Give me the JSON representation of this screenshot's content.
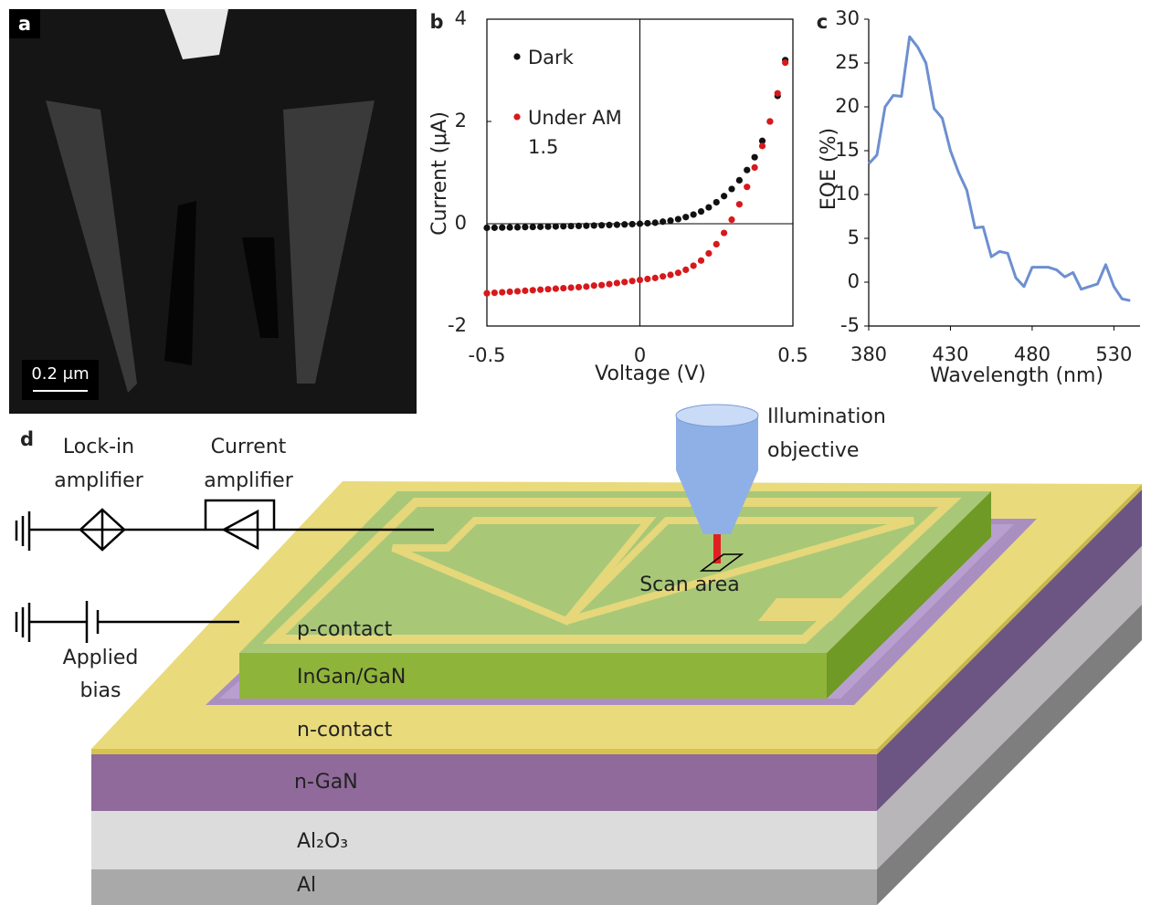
{
  "panels": {
    "a": {
      "label": "a",
      "scale_bar": "0.2 μm"
    },
    "d": {
      "label": "d",
      "lock_in": [
        "Lock-in",
        "amplifier"
      ],
      "current_amp": [
        "Current",
        "amplifier"
      ],
      "illumination": [
        "Illumination",
        "objective"
      ],
      "scan_area": "Scan area",
      "applied_bias": [
        "Applied",
        "bias"
      ],
      "layers": {
        "p_contact": "p-contact",
        "ingan": "InGan/GaN",
        "n_contact": "n-contact",
        "n_gan": "n-GaN",
        "al2o3": "Al₂O₃",
        "al": "Al"
      }
    }
  },
  "chart_data": [
    {
      "type": "scatter",
      "panel_label": "b",
      "x_label": "Voltage (V)",
      "y_label": "Current (μA)",
      "x": [
        -0.5,
        -0.475,
        -0.45,
        -0.425,
        -0.4,
        -0.375,
        -0.35,
        -0.325,
        -0.3,
        -0.275,
        -0.25,
        -0.225,
        -0.2,
        -0.175,
        -0.15,
        -0.125,
        -0.1,
        -0.075,
        -0.05,
        -0.025,
        0,
        0.025,
        0.05,
        0.075,
        0.1,
        0.125,
        0.15,
        0.175,
        0.2,
        0.225,
        0.25,
        0.275,
        0.3,
        0.325,
        0.35,
        0.375,
        0.4,
        0.425,
        0.45,
        0.475
      ],
      "xlim": [
        -0.5,
        0.5
      ],
      "ylim": [
        -2,
        4
      ],
      "xticks": [
        -0.5,
        0,
        0.5
      ],
      "yticks": [
        -2,
        0,
        2,
        4
      ],
      "series": [
        {
          "name": "Dark",
          "color": "#111111",
          "values": [
            -0.08,
            -0.078,
            -0.075,
            -0.072,
            -0.07,
            -0.066,
            -0.063,
            -0.06,
            -0.057,
            -0.053,
            -0.05,
            -0.046,
            -0.043,
            -0.04,
            -0.035,
            -0.03,
            -0.025,
            -0.02,
            -0.014,
            -0.008,
            0,
            0.01,
            0.02,
            0.04,
            0.06,
            0.09,
            0.13,
            0.18,
            0.24,
            0.32,
            0.42,
            0.54,
            0.68,
            0.85,
            1.05,
            1.3,
            1.62,
            2.0,
            2.5,
            3.2
          ]
        },
        {
          "name": "Under AM 1.5",
          "color": "#d7191c",
          "values": [
            -1.36,
            -1.35,
            -1.34,
            -1.33,
            -1.32,
            -1.31,
            -1.3,
            -1.29,
            -1.28,
            -1.27,
            -1.26,
            -1.25,
            -1.24,
            -1.23,
            -1.21,
            -1.2,
            -1.18,
            -1.16,
            -1.14,
            -1.12,
            -1.1,
            -1.08,
            -1.06,
            -1.03,
            -1.0,
            -0.96,
            -0.9,
            -0.82,
            -0.72,
            -0.58,
            -0.4,
            -0.18,
            0.08,
            0.38,
            0.72,
            1.1,
            1.52,
            2.0,
            2.55,
            3.15
          ]
        }
      ]
    },
    {
      "type": "line",
      "panel_label": "c",
      "x_label": "Wavelength (nm)",
      "y_label": "EQE (%)",
      "x": [
        380,
        385,
        390,
        395,
        400,
        405,
        410,
        415,
        420,
        425,
        430,
        435,
        440,
        445,
        450,
        455,
        460,
        465,
        470,
        475,
        480,
        485,
        490,
        495,
        500,
        505,
        510,
        515,
        520,
        525,
        530,
        535,
        540
      ],
      "values": [
        13.5,
        14.5,
        20,
        21.3,
        21.2,
        28,
        26.8,
        25,
        19.8,
        18.7,
        15,
        12.5,
        10.5,
        6.2,
        6.3,
        2.9,
        3.5,
        3.3,
        0.5,
        -0.5,
        1.7,
        1.7,
        1.7,
        1.4,
        0.6,
        1.1,
        -0.8,
        -0.5,
        -0.2,
        2.0,
        -0.5,
        -1.9,
        -2.1
      ],
      "color": "#6d8fd0",
      "xlim": [
        380,
        546
      ],
      "ylim": [
        -5,
        30
      ],
      "xticks": [
        380,
        430,
        480,
        530
      ],
      "yticks": [
        -5,
        0,
        5,
        10,
        15,
        20,
        25,
        30
      ]
    }
  ]
}
